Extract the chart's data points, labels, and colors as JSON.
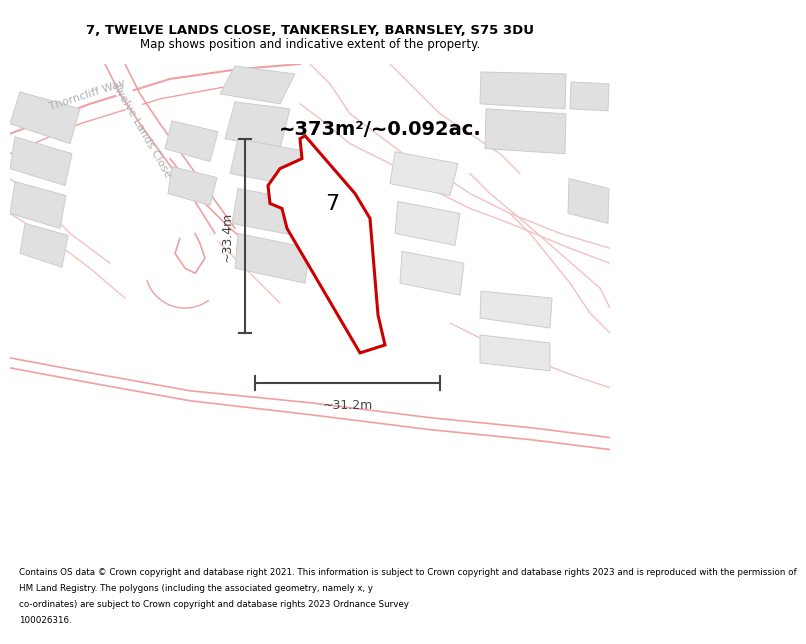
{
  "title_line1": "7, TWELVE LANDS CLOSE, TANKERSLEY, BARNSLEY, S75 3DU",
  "title_line2": "Map shows position and indicative extent of the property.",
  "area_text": "~373m²/~0.092ac.",
  "dim_vertical": "~33.4m",
  "dim_horizontal": "~31.2m",
  "label_number": "7",
  "footer_lines": [
    "Contains OS data © Crown copyright and database right 2021. This information is subject to Crown copyright and database rights 2023 and is reproduced with the permission of",
    "HM Land Registry. The polygons (including the associated geometry, namely x, y",
    "co-ordinates) are subject to Crown copyright and database rights 2023 Ordnance Survey",
    "100026316."
  ],
  "map_bg": "#f5f5f5",
  "road_color": "#f0a0a0",
  "road_color_light": "#f5c0c0",
  "highlight_color": "#cc0000",
  "building_color": "#e0e0e0",
  "building_edge": "#cccccc",
  "dim_color": "#444444",
  "road_label_color": "#aaaaaa",
  "title_fontsize": 9.5,
  "subtitle_fontsize": 8.5,
  "area_fontsize": 14,
  "dim_fontsize": 9,
  "label_fontsize": 16,
  "footer_fontsize": 6.3
}
